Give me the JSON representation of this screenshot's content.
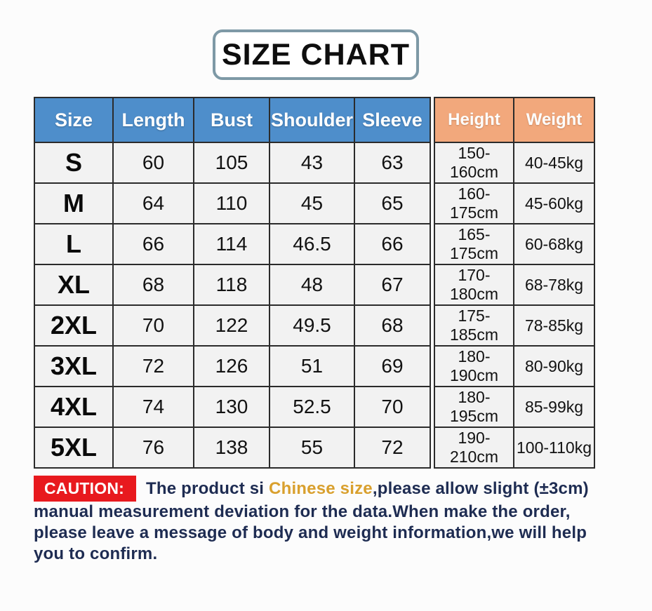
{
  "colors": {
    "header_blue": "#4e8ecb",
    "header_orange": "#f2a87c",
    "cell_bg": "#f2f2f2",
    "table_border": "#2b2b2b",
    "caution_red": "#e8191e",
    "caution_navy": "#1e2c52",
    "highlight_gold": "#d9a02e",
    "title_border": "#7e99a6"
  },
  "chart_data": {
    "type": "table",
    "title": "SIZE CHART",
    "columns": [
      "Size",
      "Length",
      "Bust",
      "Shoulder",
      "Sleeve",
      "Height",
      "Weight"
    ],
    "rows": [
      [
        "S",
        "60",
        "105",
        "43",
        "63",
        "150-160cm",
        "40-45kg"
      ],
      [
        "M",
        "64",
        "110",
        "45",
        "65",
        "160-175cm",
        "45-60kg"
      ],
      [
        "L",
        "66",
        "114",
        "46.5",
        "66",
        "165-175cm",
        "60-68kg"
      ],
      [
        "XL",
        "68",
        "118",
        "48",
        "67",
        "170-180cm",
        "68-78kg"
      ],
      [
        "2XL",
        "70",
        "122",
        "49.5",
        "68",
        "175-185cm",
        "78-85kg"
      ],
      [
        "3XL",
        "72",
        "126",
        "51",
        "69",
        "180-190cm",
        "80-90kg"
      ],
      [
        "4XL",
        "74",
        "130",
        "52.5",
        "70",
        "180-195cm",
        "85-99kg"
      ],
      [
        "5XL",
        "76",
        "138",
        "55",
        "72",
        "190-210cm",
        "100-110kg"
      ]
    ]
  },
  "caution": {
    "label": "CAUTION:",
    "line1_before": "The product si ",
    "line1_highlight": "Chinese size",
    "line1_after": ",please allow slight (±3cm)",
    "line2": "manual measurement deviation for the data.When make the order,",
    "line3": "please leave a message of body and weight information,we will help",
    "line4": "you to confirm."
  }
}
